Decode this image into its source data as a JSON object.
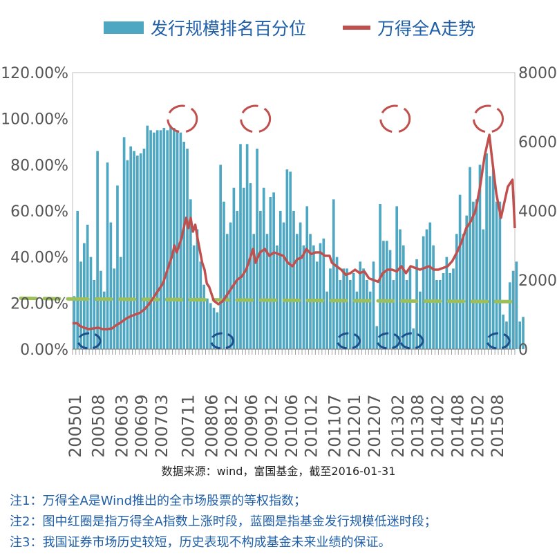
{
  "chart_data": {
    "type": "bar+line",
    "legend": [
      {
        "name": "发行规模排名百分位",
        "kind": "bar",
        "color": "#4da7c2"
      },
      {
        "name": "万得全A走势",
        "kind": "line",
        "color": "#c0504d"
      }
    ],
    "y_left": {
      "min": 0,
      "max": 1.2,
      "ticks": [
        "0.00%",
        "20.00%",
        "40.00%",
        "60.00%",
        "80.00%",
        "100.00%",
        "120.00%"
      ]
    },
    "y_right": {
      "min": 0,
      "max": 8000,
      "ticks": [
        "0",
        "2000",
        "4000",
        "6000",
        "8000"
      ]
    },
    "x_start": "2005-01",
    "x_ticks": [
      "200501",
      "200508",
      "200603",
      "200609",
      "200703",
      "200711",
      "200806",
      "200812",
      "200906",
      "200912",
      "201006",
      "201012",
      "201107",
      "201201",
      "201207",
      "201302",
      "201308",
      "201402",
      "201408",
      "201502",
      "201508"
    ],
    "bars": [
      0.23,
      0.6,
      0.38,
      0.46,
      0.54,
      0.4,
      0.3,
      0.86,
      0.34,
      0.25,
      0.81,
      0.55,
      0.35,
      0.71,
      0.4,
      0.92,
      0.82,
      0.88,
      0.86,
      0.84,
      0.85,
      0.87,
      0.97,
      0.95,
      0.94,
      0.95,
      0.95,
      0.96,
      0.95,
      0.97,
      0.96,
      0.95,
      0.94,
      0.9,
      0.87,
      0.65,
      0.45,
      0.52,
      0.38,
      0.28,
      0.22,
      0.2,
      0.18,
      0.16,
      0.8,
      0.64,
      0.5,
      0.55,
      0.7,
      0.6,
      0.89,
      0.7,
      0.89,
      0.72,
      0.5,
      0.87,
      0.6,
      0.7,
      0.5,
      0.66,
      0.68,
      0.45,
      0.6,
      0.55,
      0.78,
      0.77,
      0.6,
      0.5,
      0.55,
      0.45,
      0.62,
      0.5,
      0.45,
      0.38,
      0.46,
      0.48,
      0.25,
      0.35,
      0.65,
      0.4,
      0.3,
      0.35,
      0.35,
      0.3,
      0.33,
      0.25,
      0.38,
      0.35,
      0.3,
      0.25,
      0.38,
      0.1,
      0.63,
      0.47,
      0.47,
      0.43,
      0.3,
      0.62,
      0.52,
      0.45,
      0.3,
      0.35,
      0.09,
      0.39,
      0.25,
      0.49,
      0.52,
      0.55,
      0.45,
      0.3,
      0.3,
      0.33,
      0.4,
      0.33,
      0.35,
      0.5,
      0.67,
      0.5,
      0.58,
      0.79,
      0.64,
      0.65,
      0.8,
      0.52,
      0.85,
      0.75,
      0.78,
      0.64,
      0.64,
      0.15,
      0.12,
      0.29,
      0.34,
      0.38,
      0.12,
      0.14
    ],
    "line_points": [
      [
        0,
        750
      ],
      [
        2,
        750
      ],
      [
        3,
        680
      ],
      [
        5,
        620
      ],
      [
        7,
        580
      ],
      [
        9,
        600
      ],
      [
        11,
        620
      ],
      [
        13,
        580
      ],
      [
        15,
        580
      ],
      [
        17,
        600
      ],
      [
        19,
        700
      ],
      [
        21,
        780
      ],
      [
        23,
        880
      ],
      [
        25,
        950
      ],
      [
        27,
        1000
      ],
      [
        29,
        1050
      ],
      [
        31,
        1150
      ],
      [
        33,
        1300
      ],
      [
        35,
        1500
      ],
      [
        37,
        1700
      ],
      [
        39,
        1900
      ],
      [
        41,
        2300
      ],
      [
        43,
        2700
      ],
      [
        44,
        3000
      ],
      [
        45,
        2800
      ],
      [
        47,
        3200
      ],
      [
        49,
        3800
      ],
      [
        50,
        3500
      ],
      [
        51,
        3800
      ],
      [
        52,
        3400
      ],
      [
        53,
        3600
      ],
      [
        54,
        3200
      ],
      [
        56,
        2500
      ],
      [
        57,
        2300
      ],
      [
        58,
        1900
      ],
      [
        59,
        1800
      ],
      [
        61,
        1400
      ],
      [
        63,
        1300
      ],
      [
        65,
        1400
      ],
      [
        67,
        1600
      ],
      [
        69,
        1800
      ],
      [
        71,
        2000
      ],
      [
        73,
        2100
      ],
      [
        75,
        2300
      ],
      [
        77,
        2700
      ],
      [
        78,
        2900
      ],
      [
        79,
        2500
      ],
      [
        81,
        2800
      ],
      [
        83,
        2900
      ],
      [
        85,
        2700
      ],
      [
        87,
        2800
      ],
      [
        89,
        2750
      ],
      [
        91,
        2700
      ],
      [
        93,
        2500
      ],
      [
        95,
        2400
      ],
      [
        97,
        2600
      ],
      [
        99,
        2650
      ],
      [
        101,
        2900
      ],
      [
        103,
        2750
      ],
      [
        105,
        2800
      ],
      [
        107,
        2800
      ],
      [
        109,
        2700
      ],
      [
        111,
        2700
      ],
      [
        112,
        2500
      ],
      [
        114,
        2400
      ],
      [
        116,
        2300
      ],
      [
        118,
        2150
      ],
      [
        120,
        2200
      ],
      [
        122,
        2300
      ],
      [
        124,
        2200
      ],
      [
        126,
        2250
      ],
      [
        128,
        2050
      ],
      [
        130,
        2000
      ],
      [
        132,
        1950
      ],
      [
        134,
        2200
      ],
      [
        136,
        2300
      ],
      [
        138,
        2300
      ],
      [
        140,
        2250
      ],
      [
        142,
        2400
      ],
      [
        144,
        2200
      ],
      [
        146,
        2400
      ],
      [
        148,
        2350
      ],
      [
        150,
        2300
      ],
      [
        152,
        2350
      ],
      [
        154,
        2400
      ],
      [
        156,
        2300
      ],
      [
        158,
        2300
      ],
      [
        160,
        2350
      ],
      [
        162,
        2400
      ],
      [
        164,
        2550
      ],
      [
        166,
        2800
      ],
      [
        168,
        3100
      ],
      [
        170,
        3500
      ],
      [
        172,
        3700
      ],
      [
        174,
        4000
      ],
      [
        176,
        4700
      ],
      [
        178,
        5600
      ],
      [
        180,
        6200
      ],
      [
        181,
        5600
      ],
      [
        183,
        4500
      ],
      [
        185,
        3800
      ],
      [
        186,
        4100
      ],
      [
        188,
        4700
      ],
      [
        190,
        4900
      ],
      [
        191,
        3500
      ]
    ],
    "green_dashed_level": 0.215,
    "annotations": {
      "red_circles": [
        "2007-10",
        "2009-08",
        "2013-02",
        "2015-06"
      ],
      "blue_circles": [
        "2005-06",
        "2008-10",
        "2011-12",
        "2012-12",
        "2013-07",
        "2015-09"
      ]
    }
  },
  "legend_labels": {
    "bar": "发行规模排名百分位",
    "line": "万得全A走势"
  },
  "source_text": "数据来源：wind，富国基金，截至2016-01-31",
  "notes": [
    "注1：万得全A是Wind推出的全市场股票的等权指数；",
    "注2：图中红圈是指万得全A指数上涨时段，蓝圈是指基金发行规模低迷时段；",
    "注3：我国证券市场历史较短，历史表现不构成基金未来业绩的保证。"
  ],
  "colors": {
    "bar": "#4da7c2",
    "line": "#c0504d",
    "green_dash": "#9cbf5a",
    "red_circle": "#c0504d",
    "blue_circle": "#1f4e8c",
    "axis_text": "#555555"
  }
}
